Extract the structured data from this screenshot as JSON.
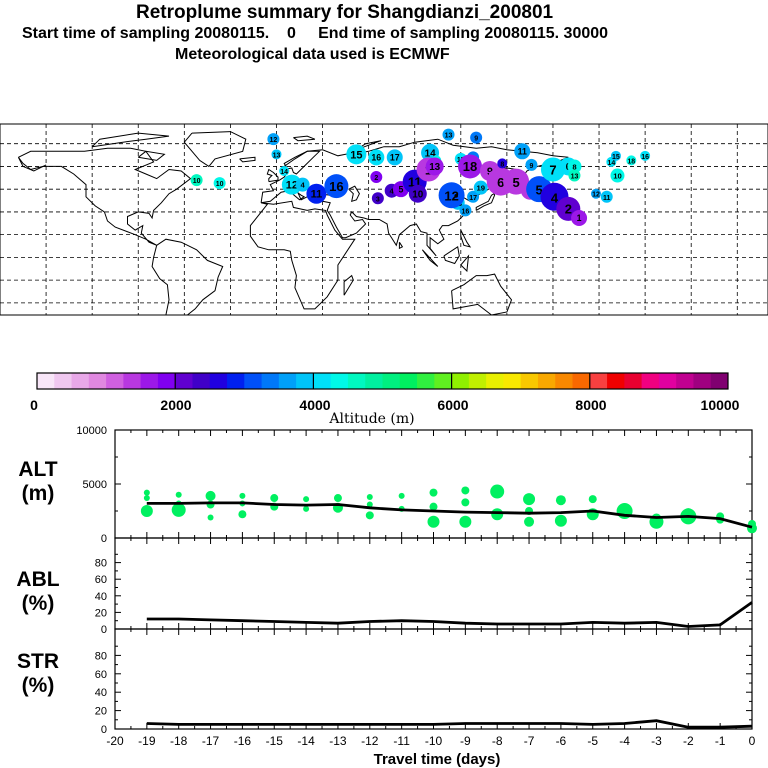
{
  "header": {
    "title": "Retroplume summary for Shangdianzi_200801",
    "line2": "Start time of sampling 20080115.    0     End time of sampling 20080115. 30000",
    "line3": "Meteorological data used is ECMWF"
  },
  "colorbar": {
    "tick_labels": [
      "0",
      "2000",
      "4000",
      "6000",
      "8000",
      "10000"
    ],
    "label": "Altitude  (m)",
    "colors": [
      "#f8e6f8",
      "#f0c8f0",
      "#e8a8e8",
      "#e088e0",
      "#d060e0",
      "#b838e0",
      "#9c18e8",
      "#8000f0",
      "#6000d0",
      "#4000c8",
      "#2000e0",
      "#0020f0",
      "#0050f8",
      "#0078f8",
      "#00a0f8",
      "#00c4f8",
      "#00e0f8",
      "#00f8e8",
      "#00f8c0",
      "#00f0a0",
      "#00f080",
      "#00f060",
      "#30f040",
      "#60f020",
      "#90f000",
      "#c0f000",
      "#e8f000",
      "#f8e800",
      "#f8c800",
      "#f8a800",
      "#f88800",
      "#f86800",
      "#f84040",
      "#f00000",
      "#e80030",
      "#f00080",
      "#e000a0",
      "#c00090",
      "#a00080",
      "#800070"
    ]
  },
  "map": {
    "plume_points": [
      {
        "label": "12",
        "lon": -2,
        "lat": 78,
        "color": "#00a0f8",
        "r": 6
      },
      {
        "label": "13",
        "lon": 0,
        "lat": 68,
        "color": "#00c4f8",
        "r": 5
      },
      {
        "label": "14",
        "lon": 5,
        "lat": 57,
        "color": "#00e0f8",
        "r": 5
      },
      {
        "label": "10",
        "lon": -52,
        "lat": 51,
        "color": "#00f8c0",
        "r": 6
      },
      {
        "label": "10",
        "lon": -37,
        "lat": 49,
        "color": "#00f8e8",
        "r": 6
      },
      {
        "label": "12",
        "lon": 10,
        "lat": 48,
        "color": "#00e0f8",
        "r": 10
      },
      {
        "label": "4",
        "lon": 17,
        "lat": 48,
        "color": "#00c4f8",
        "r": 7
      },
      {
        "label": "11",
        "lon": 26,
        "lat": 42,
        "color": "#0020f0",
        "r": 10
      },
      {
        "label": "16",
        "lon": 39,
        "lat": 47,
        "color": "#0050f8",
        "r": 12
      },
      {
        "label": "15",
        "lon": 52,
        "lat": 68,
        "color": "#00e0f8",
        "r": 10
      },
      {
        "label": "16",
        "lon": 65,
        "lat": 66,
        "color": "#00e0f8",
        "r": 8
      },
      {
        "label": "17",
        "lon": 77,
        "lat": 66,
        "color": "#00c4f8",
        "r": 8
      },
      {
        "label": "14",
        "lon": 100,
        "lat": 69,
        "color": "#00c4f8",
        "r": 9
      },
      {
        "label": "13",
        "lon": 112,
        "lat": 81,
        "color": "#00a0f8",
        "r": 6
      },
      {
        "label": "9",
        "lon": 130,
        "lat": 79,
        "color": "#0078f8",
        "r": 6
      },
      {
        "label": "11",
        "lon": 160,
        "lat": 70,
        "color": "#00a0f8",
        "r": 8
      },
      {
        "label": "19",
        "lon": 104,
        "lat": 64,
        "color": "#00f8e8",
        "r": 5
      },
      {
        "label": "15",
        "lon": 120,
        "lat": 65,
        "color": "#00e0f8",
        "r": 6
      },
      {
        "label": "8",
        "lon": 128,
        "lat": 66,
        "color": "#0078f8",
        "r": 6
      },
      {
        "label": "18",
        "lon": 126,
        "lat": 60,
        "color": "#9c18e8",
        "r": 12
      },
      {
        "label": "2",
        "lon": 65,
        "lat": 53,
        "color": "#8000f0",
        "r": 6
      },
      {
        "label": "3",
        "lon": 66,
        "lat": 39,
        "color": "#4000c8",
        "r": 6
      },
      {
        "label": "4",
        "lon": 75,
        "lat": 44,
        "color": "#4000c8",
        "r": 7
      },
      {
        "label": "5",
        "lon": 81,
        "lat": 45,
        "color": "#8000f0",
        "r": 8
      },
      {
        "label": "11",
        "lon": 90,
        "lat": 50,
        "color": "#2000e0",
        "r": 12
      },
      {
        "label": "10",
        "lon": 92,
        "lat": 42,
        "color": "#4000c8",
        "r": 9
      },
      {
        "label": "1",
        "lon": 99,
        "lat": 58,
        "color": "#b838e0",
        "r": 12
      },
      {
        "label": "13",
        "lon": 103,
        "lat": 60,
        "color": "#9c18e8",
        "r": 9
      },
      {
        "label": "18",
        "lon": 118,
        "lat": 36,
        "color": "#00c4f8",
        "r": 7
      },
      {
        "label": "12",
        "lon": 114,
        "lat": 41,
        "color": "#0050f8",
        "r": 13
      },
      {
        "label": "16",
        "lon": 123,
        "lat": 31,
        "color": "#00a0f8",
        "r": 6
      },
      {
        "label": "17",
        "lon": 128,
        "lat": 40,
        "color": "#00a0f8",
        "r": 6
      },
      {
        "label": "19",
        "lon": 133,
        "lat": 46,
        "color": "#00c4f8",
        "r": 7
      },
      {
        "label": "9",
        "lon": 139,
        "lat": 57,
        "color": "#b838e0",
        "r": 10
      },
      {
        "label": "6",
        "lon": 146,
        "lat": 50,
        "color": "#b838e0",
        "r": 14
      },
      {
        "label": "5",
        "lon": 156,
        "lat": 50,
        "color": "#b838e0",
        "r": 13
      },
      {
        "label": "6",
        "lon": 165,
        "lat": 44,
        "color": "#b838e0",
        "r": 9
      },
      {
        "label": "5",
        "lon": 171,
        "lat": 45,
        "color": "#0050f8",
        "r": 13
      },
      {
        "label": "4",
        "lon": 181,
        "lat": 40,
        "color": "#2000e0",
        "r": 14
      },
      {
        "label": "2",
        "lon": 190,
        "lat": 32,
        "color": "#6000d0",
        "r": 12
      },
      {
        "label": "1",
        "lon": 197,
        "lat": 26,
        "color": "#9c18e8",
        "r": 8
      },
      {
        "label": "8",
        "lon": 147,
        "lat": 62,
        "color": "#2000e0",
        "r": 5
      },
      {
        "label": "9",
        "lon": 166,
        "lat": 61,
        "color": "#00a0f8",
        "r": 6
      },
      {
        "label": "7",
        "lon": 180,
        "lat": 58,
        "color": "#00e0f8",
        "r": 12
      },
      {
        "label": "6",
        "lon": 190,
        "lat": 60,
        "color": "#00e0f8",
        "r": 9
      },
      {
        "label": "8",
        "lon": 194,
        "lat": 60,
        "color": "#00f8e8",
        "r": 7
      },
      {
        "label": "13",
        "lon": 194,
        "lat": 54,
        "color": "#00f8c0",
        "r": 6
      },
      {
        "label": "10",
        "lon": 222,
        "lat": 54,
        "color": "#00f8e8",
        "r": 7
      },
      {
        "label": "14",
        "lon": 218,
        "lat": 63,
        "color": "#00e0f8",
        "r": 5
      },
      {
        "label": "15",
        "lon": 221,
        "lat": 67,
        "color": "#00c4f8",
        "r": 5
      },
      {
        "label": "18",
        "lon": 231,
        "lat": 64,
        "color": "#00f8e8",
        "r": 5
      },
      {
        "label": "16",
        "lon": 240,
        "lat": 67,
        "color": "#00e0f8",
        "r": 5
      },
      {
        "label": "11",
        "lon": 215,
        "lat": 40,
        "color": "#00c4f8",
        "r": 6
      },
      {
        "label": "12",
        "lon": 208,
        "lat": 42,
        "color": "#00a0f8",
        "r": 5
      }
    ]
  },
  "chart_data": [
    {
      "type": "scatter+line",
      "panel": "ALT",
      "ylabel": "ALT\n(m)",
      "ylim": [
        0,
        10000
      ],
      "yticks": [
        "10000",
        "5000",
        "0"
      ],
      "x": [
        -19,
        -18,
        -17,
        -16,
        -15,
        -14,
        -13,
        -12,
        -11,
        -10,
        -9,
        -8,
        -7,
        -6,
        -5,
        -4,
        -3,
        -2,
        -1,
        0
      ],
      "mean_line": [
        3200,
        3200,
        3250,
        3250,
        3100,
        3050,
        3100,
        2800,
        2600,
        2500,
        2400,
        2350,
        2300,
        2350,
        2500,
        2100,
        1900,
        2000,
        1800,
        1000
      ],
      "point_color": "#00f060",
      "points": [
        {
          "x": -19,
          "y": 4200,
          "s": 3
        },
        {
          "x": -19,
          "y": 3700,
          "s": 3
        },
        {
          "x": -19,
          "y": 2500,
          "s": 6
        },
        {
          "x": -18,
          "y": 4000,
          "s": 3
        },
        {
          "x": -18,
          "y": 3200,
          "s": 3
        },
        {
          "x": -18,
          "y": 2600,
          "s": 7
        },
        {
          "x": -17,
          "y": 3900,
          "s": 5
        },
        {
          "x": -17,
          "y": 3100,
          "s": 4
        },
        {
          "x": -17,
          "y": 1900,
          "s": 3
        },
        {
          "x": -16,
          "y": 3900,
          "s": 3
        },
        {
          "x": -16,
          "y": 3200,
          "s": 3
        },
        {
          "x": -16,
          "y": 2200,
          "s": 4
        },
        {
          "x": -15,
          "y": 3700,
          "s": 4
        },
        {
          "x": -15,
          "y": 2900,
          "s": 4
        },
        {
          "x": -14,
          "y": 3600,
          "s": 3
        },
        {
          "x": -14,
          "y": 2700,
          "s": 3
        },
        {
          "x": -13,
          "y": 3700,
          "s": 4
        },
        {
          "x": -13,
          "y": 2800,
          "s": 5
        },
        {
          "x": -12,
          "y": 3800,
          "s": 3
        },
        {
          "x": -12,
          "y": 3100,
          "s": 3
        },
        {
          "x": -12,
          "y": 2100,
          "s": 4
        },
        {
          "x": -11,
          "y": 3900,
          "s": 3
        },
        {
          "x": -11,
          "y": 2700,
          "s": 3
        },
        {
          "x": -10,
          "y": 4200,
          "s": 4
        },
        {
          "x": -10,
          "y": 2900,
          "s": 4
        },
        {
          "x": -10,
          "y": 1500,
          "s": 6
        },
        {
          "x": -9,
          "y": 4400,
          "s": 4
        },
        {
          "x": -9,
          "y": 3300,
          "s": 4
        },
        {
          "x": -9,
          "y": 1500,
          "s": 6
        },
        {
          "x": -8,
          "y": 4300,
          "s": 7
        },
        {
          "x": -8,
          "y": 2200,
          "s": 6
        },
        {
          "x": -7,
          "y": 3600,
          "s": 6
        },
        {
          "x": -7,
          "y": 2500,
          "s": 4
        },
        {
          "x": -7,
          "y": 1500,
          "s": 5
        },
        {
          "x": -6,
          "y": 3500,
          "s": 5
        },
        {
          "x": -6,
          "y": 1600,
          "s": 6
        },
        {
          "x": -5,
          "y": 3600,
          "s": 4
        },
        {
          "x": -5,
          "y": 2200,
          "s": 6
        },
        {
          "x": -4,
          "y": 2500,
          "s": 8
        },
        {
          "x": -3,
          "y": 1800,
          "s": 5
        },
        {
          "x": -3,
          "y": 1500,
          "s": 7
        },
        {
          "x": -2,
          "y": 2300,
          "s": 5
        },
        {
          "x": -2,
          "y": 2000,
          "s": 8
        },
        {
          "x": -1,
          "y": 2000,
          "s": 4
        },
        {
          "x": -1,
          "y": 1700,
          "s": 4
        },
        {
          "x": 0,
          "y": 1300,
          "s": 4
        },
        {
          "x": 0,
          "y": 900,
          "s": 5
        }
      ]
    },
    {
      "type": "line",
      "panel": "ABL",
      "ylabel": "ABL\n(%)",
      "ylim": [
        0,
        100
      ],
      "yticks": [
        "80",
        "60",
        "40",
        "20",
        "0"
      ],
      "x": [
        -19,
        -18,
        -17,
        -16,
        -15,
        -14,
        -13,
        -12,
        -11,
        -10,
        -9,
        -8,
        -7,
        -6,
        -5,
        -4,
        -3,
        -2,
        -1,
        0
      ],
      "values": [
        12,
        12,
        11,
        10,
        9,
        8,
        7,
        9,
        10,
        9,
        7,
        6,
        6,
        6,
        8,
        7,
        8,
        3,
        5,
        32
      ]
    },
    {
      "type": "line",
      "panel": "STR",
      "ylabel": "STR\n(%)",
      "ylim": [
        0,
        100
      ],
      "yticks": [
        "80",
        "60",
        "40",
        "20",
        "0"
      ],
      "x": [
        -19,
        -18,
        -17,
        -16,
        -15,
        -14,
        -13,
        -12,
        -11,
        -10,
        -9,
        -8,
        -7,
        -6,
        -5,
        -4,
        -3,
        -2,
        -1,
        0
      ],
      "values": [
        6,
        5,
        5,
        5,
        5,
        5,
        5,
        5,
        5,
        5,
        6,
        6,
        6,
        6,
        5,
        6,
        9,
        2,
        2,
        3
      ]
    }
  ],
  "xaxis": {
    "tick_labels": [
      "-20",
      "-19",
      "-18",
      "-17",
      "-16",
      "-15",
      "-14",
      "-13",
      "-12",
      "-11",
      "-10",
      "-9",
      "-8",
      "-7",
      "-6",
      "-5",
      "-4",
      "-3",
      "-2",
      "-1",
      "0"
    ],
    "label": "Travel time (days)"
  },
  "panels": {
    "alt_label_1": "ALT",
    "alt_label_2": "(m)",
    "abl_label_1": "ABL",
    "abl_label_2": "(%)",
    "str_label_1": "STR",
    "str_label_2": "(%)"
  }
}
